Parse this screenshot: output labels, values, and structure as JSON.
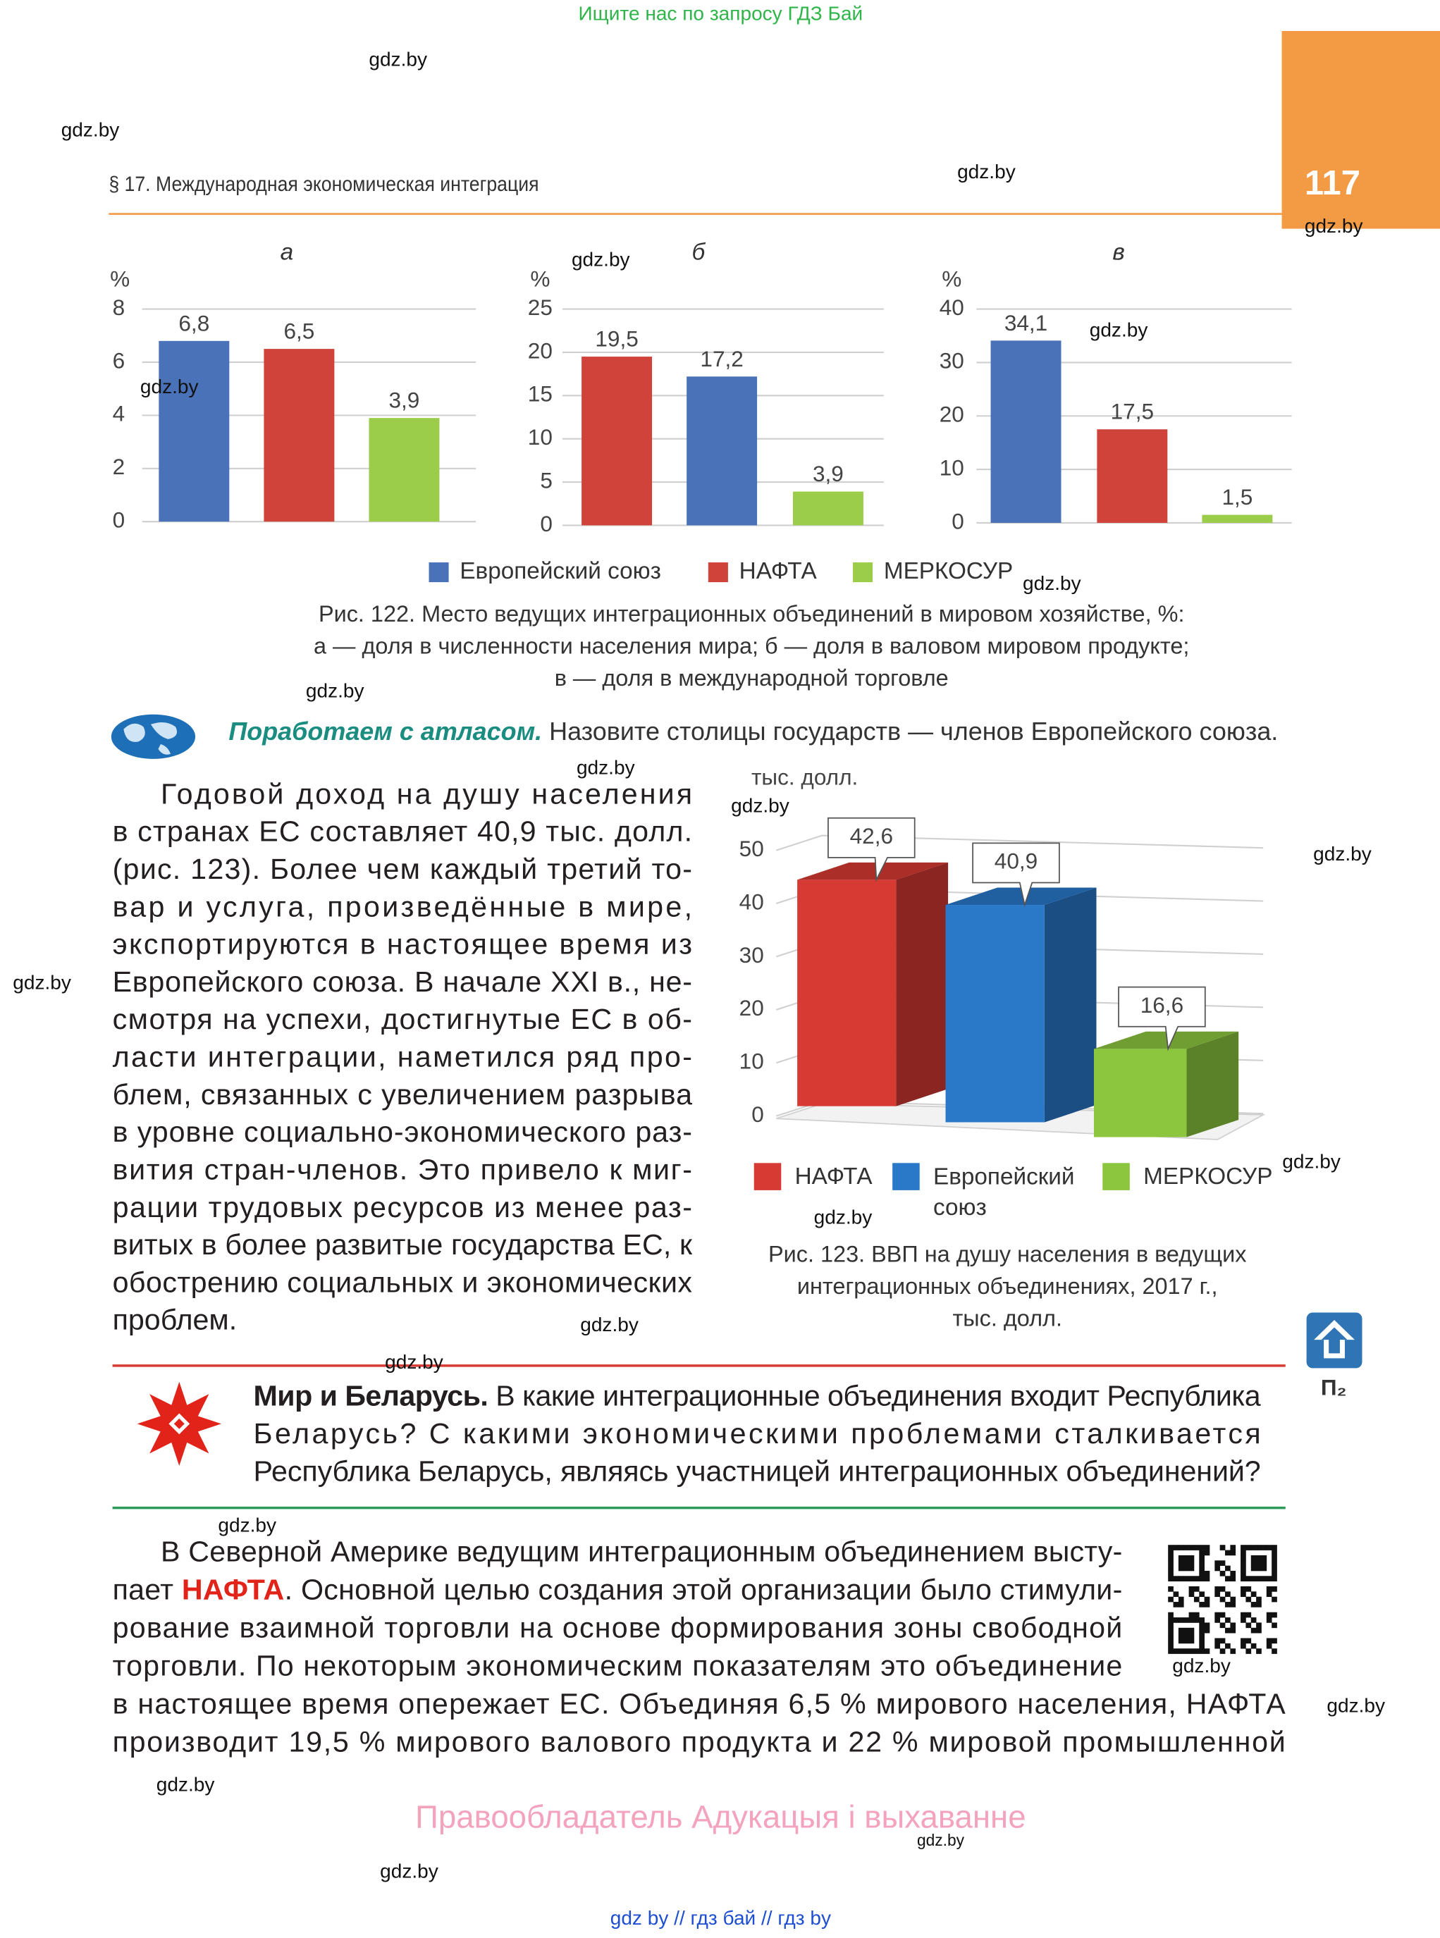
{
  "header": {
    "search_note": "Ищите нас по запросу ГДЗ Бай",
    "page_number": "117",
    "running_head": "§ 17. Международная экономическая интеграция"
  },
  "chart_data": [
    {
      "type": "bar",
      "title": "а",
      "y_label": "%",
      "values": [
        6.8,
        6.5,
        3.9
      ],
      "value_labels": [
        "6,8",
        "6,5",
        "3,9"
      ],
      "colors": [
        "#4a72b8",
        "#d0433a",
        "#9ccd4a"
      ],
      "ylim": [
        0,
        8
      ],
      "yticks": [
        0,
        2,
        4,
        6,
        8
      ],
      "grid": true
    },
    {
      "type": "bar",
      "title": "б",
      "y_label": "%",
      "values": [
        19.5,
        17.2,
        3.9
      ],
      "value_labels": [
        "19,5",
        "17,2",
        "3,9"
      ],
      "colors": [
        "#d0433a",
        "#4a72b8",
        "#9ccd4a"
      ],
      "ylim": [
        0,
        25
      ],
      "yticks": [
        0,
        5,
        10,
        15,
        20,
        25
      ],
      "grid": true
    },
    {
      "type": "bar",
      "title": "в",
      "y_label": "%",
      "values": [
        34.1,
        17.5,
        1.5
      ],
      "value_labels": [
        "34,1",
        "17,5",
        "1,5"
      ],
      "colors": [
        "#4a72b8",
        "#d0433a",
        "#9ccd4a"
      ],
      "ylim": [
        0,
        40
      ],
      "yticks": [
        0,
        10,
        20,
        30,
        40
      ],
      "grid": true
    },
    {
      "type": "bar3d",
      "y_label": "тыс. долл.",
      "categories": [
        "НАФТА",
        "Европейский союз",
        "МЕРКОСУР"
      ],
      "values": [
        42.6,
        40.9,
        16.6
      ],
      "value_labels": [
        "42,6",
        "40,9",
        "16,6"
      ],
      "colors": [
        "#d63a33",
        "#2a78c8",
        "#8cc63f"
      ],
      "ylim": [
        0,
        50
      ],
      "yticks": [
        0,
        10,
        20,
        30,
        40,
        50
      ],
      "grid": true
    }
  ],
  "figure_122": {
    "legend": [
      {
        "name": "Европейский союз",
        "color": "#4a72b8"
      },
      {
        "name": "НАФТА",
        "color": "#d0433a"
      },
      {
        "name": "МЕРКОСУР",
        "color": "#9ccd4a"
      }
    ],
    "caption": [
      "Рис. 122. Место ведущих интеграционных объединений в мировом хозяйстве, %:",
      "а — доля в численности населения мира; б — доля в валовом мировом продукте;",
      "в — доля в международной торговле"
    ]
  },
  "atlas": {
    "lead": "Поработаем с атласом.",
    "text": " Назовите столицы государств — членов Европейского союза."
  },
  "paragraph_1": [
    "Годовой доход на душу населения",
    "в странах ЕС составляет 40,9 тыс. долл.",
    "(рис. 123). Более чем каждый третий то-",
    "вар и услуга, произведённые в мире,",
    "экспортируются в настоящее время из",
    "Европейского союза. В начале XXI в., не-",
    "смотря на успехи, достигнутые ЕС в об-",
    "ласти интеграции, наметился ряд про-",
    "блем, связанных с увеличением разрыва",
    "в уровне социально-экономического раз-",
    "вития стран-членов. Это привело к миг-",
    "рации трудовых ресурсов из менее раз-",
    "витых в более развитые государства ЕС, к",
    "обострению социальных и экономических",
    "проблем."
  ],
  "figure_123": {
    "caption": [
      "Рис. 123. ВВП на душу населения в ведущих",
      "интеграционных объединениях, 2017 г.,",
      "тыс. долл."
    ]
  },
  "supplement_label": "П₂",
  "box": {
    "lead": "Мир и Беларусь.",
    "lines": [
      " В какие интеграционные объединения входит Республика",
      "Беларусь? С какими экономическими проблемами сталкивается",
      "Республика Беларусь, являясь участницей интеграционных объединений?"
    ]
  },
  "paragraph_2": [
    [
      "В Северной Америке ведущим интеграционным объединением высту-"
    ],
    [
      "пает ",
      "НАФТА",
      ". Основной целью создания этой организации было стимули-"
    ],
    [
      "рование взаимной торговли на основе формирования зоны свободной"
    ],
    [
      "торговли. По некоторым экономическим показателям это объединение"
    ],
    [
      "в настоящее время опережает ЕС. Объединяя 6,5 % мирового населения, НАФТА"
    ],
    [
      "производит 19,5 % мирового валового продукта и 22 % мировой промышленной"
    ]
  ],
  "footer": {
    "rights": "Правообладатель Адукацыя і выхаванне",
    "links": "gdz by  //  гдз бай  //  гдз by"
  },
  "watermarks": [
    "gdz.by",
    "gdz.by",
    "gdz.by",
    "gdz.by",
    "gdz.by",
    "gdz.by",
    "gdz.by",
    "gdz.by",
    "gdz.by",
    "gdz.by",
    "gdz.by",
    "gdz.by",
    "gdz.by",
    "gdz.by",
    "gdz.by",
    "gdz.by",
    "gdz.by",
    "gdz.by",
    "gdz.by",
    "gdz.by",
    "gdz.by",
    "gdz.by",
    "gdz.by"
  ]
}
